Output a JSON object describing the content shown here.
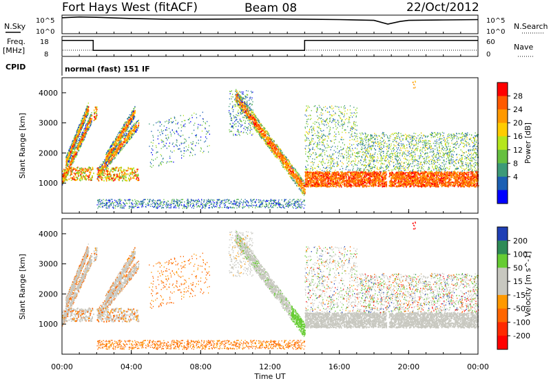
{
  "header": {
    "station": "Fort Hays West (fitACF)",
    "beam": "Beam 08",
    "date": "22/Oct/2012"
  },
  "chart_data": [
    {
      "type": "line",
      "name": "noise-panel",
      "left_label": "N.Sky",
      "right_label": "N.Search",
      "yticks_left": [
        "10^5",
        "10^0"
      ],
      "yticks_right": [
        "10^5",
        "10^0"
      ],
      "x": [
        0,
        1,
        2,
        4,
        6,
        8,
        10,
        12,
        14,
        16,
        18,
        18.8,
        19.5,
        20,
        22,
        24
      ],
      "series": [
        {
          "values": [
            4.3,
            4.5,
            4.4,
            4.1,
            3.9,
            3.9,
            3.95,
            4.0,
            3.9,
            3.8,
            3.6,
            2.6,
            3.3,
            3.6,
            3.7,
            3.8
          ]
        }
      ]
    },
    {
      "type": "line",
      "name": "frequency-panel",
      "left_label": "Freq.",
      "left_unit": "[MHz]",
      "right_label": "Nave",
      "yticks_left": [
        "18",
        "8"
      ],
      "yticks_right": [
        "60",
        "0"
      ],
      "ylim": [
        8,
        18
      ],
      "x": [
        0,
        1.8,
        1.8,
        14,
        14,
        24
      ],
      "series": [
        {
          "values": [
            16,
            16,
            11,
            11,
            16,
            16
          ]
        }
      ]
    },
    {
      "type": "table",
      "name": "cpid-row",
      "label": "CPID",
      "mode": "normal (fast) 151 IF"
    },
    {
      "type": "heatmap",
      "name": "power",
      "ylabel": "Slant Range [km]",
      "yticks": [
        "4000",
        "3000",
        "2000",
        "1000"
      ],
      "ylim": [
        0,
        4500
      ],
      "xlim": [
        0,
        24
      ],
      "colorbar_label": "Power [dB]",
      "colorbar_ticks": [
        "28",
        "24",
        "20",
        "16",
        "12",
        "8",
        "4"
      ],
      "colorbar_colors": [
        "#ff0000",
        "#ff5a00",
        "#ff9900",
        "#ffcc00",
        "#b5e61d",
        "#66c040",
        "#3c9a78",
        "#1b5fb3",
        "#0000ff"
      ]
    },
    {
      "type": "heatmap",
      "name": "velocity",
      "ylabel": "Slant Range [km]",
      "yticks": [
        "4000",
        "3000",
        "2000",
        "1000"
      ],
      "ylim": [
        0,
        4500
      ],
      "xlim": [
        0,
        24
      ],
      "colorbar_label": "Velocity [m s^-1]",
      "colorbar_ticks": [
        "200",
        "100",
        "50",
        "15",
        "-15",
        "-50",
        "-100",
        "-200"
      ],
      "colorbar_colors": [
        "#1f3fb5",
        "#2e8b57",
        "#66cc33",
        "#c8c8c0",
        "#c8c8c0",
        "#ff9900",
        "#ff6600",
        "#ff2a00",
        "#ff0000"
      ]
    }
  ],
  "xaxis": {
    "label": "Time UT",
    "ticks": [
      "00:00",
      "04:00",
      "08:00",
      "12:00",
      "16:00",
      "20:00",
      "00:00"
    ]
  }
}
